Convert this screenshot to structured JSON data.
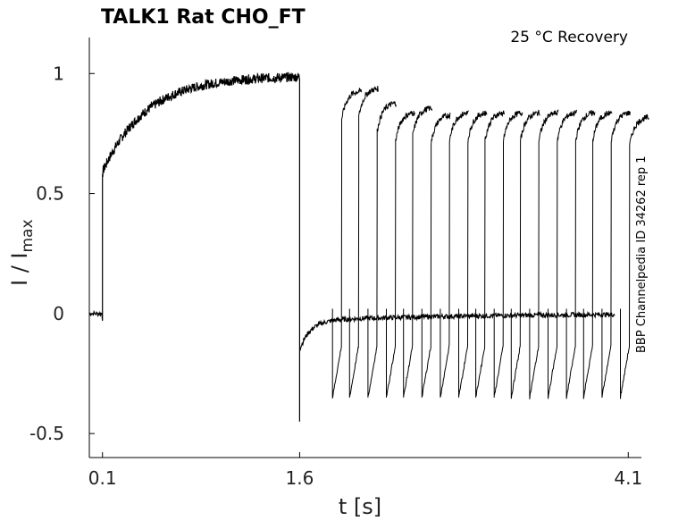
{
  "chart_data": {
    "type": "line",
    "title": "TALK1  Rat  CHO_FT",
    "annotation": "25 °C  Recovery",
    "side_label": "BBP Channelpedia ID 34262 rep 1",
    "xlabel": "t [s]",
    "ylabel_main": "I / I",
    "ylabel_sub": "max",
    "xlim": [
      0.0,
      4.2
    ],
    "ylim": [
      -0.6,
      1.15
    ],
    "x_ticks": [
      "0.1",
      "1.6",
      "4.1"
    ],
    "y_ticks": [
      "1",
      "0.5",
      "0",
      "-0.5"
    ],
    "grid": false,
    "line_color": "#000000",
    "description_params": {
      "prepulse_on": 0.1,
      "prepulse_off": 1.6,
      "recovery_test_starts": [
        1.85,
        1.98,
        2.12,
        2.26,
        2.39,
        2.53,
        2.67,
        2.81,
        2.94,
        3.08,
        3.21,
        3.35,
        3.49,
        3.63,
        3.76,
        3.9,
        4.04
      ],
      "recovery_test_peaks": [
        0.93,
        0.94,
        0.88,
        0.84,
        0.86,
        0.83,
        0.84,
        0.84,
        0.84,
        0.84,
        0.84,
        0.84,
        0.84,
        0.84,
        0.84,
        0.84,
        0.82
      ]
    }
  }
}
